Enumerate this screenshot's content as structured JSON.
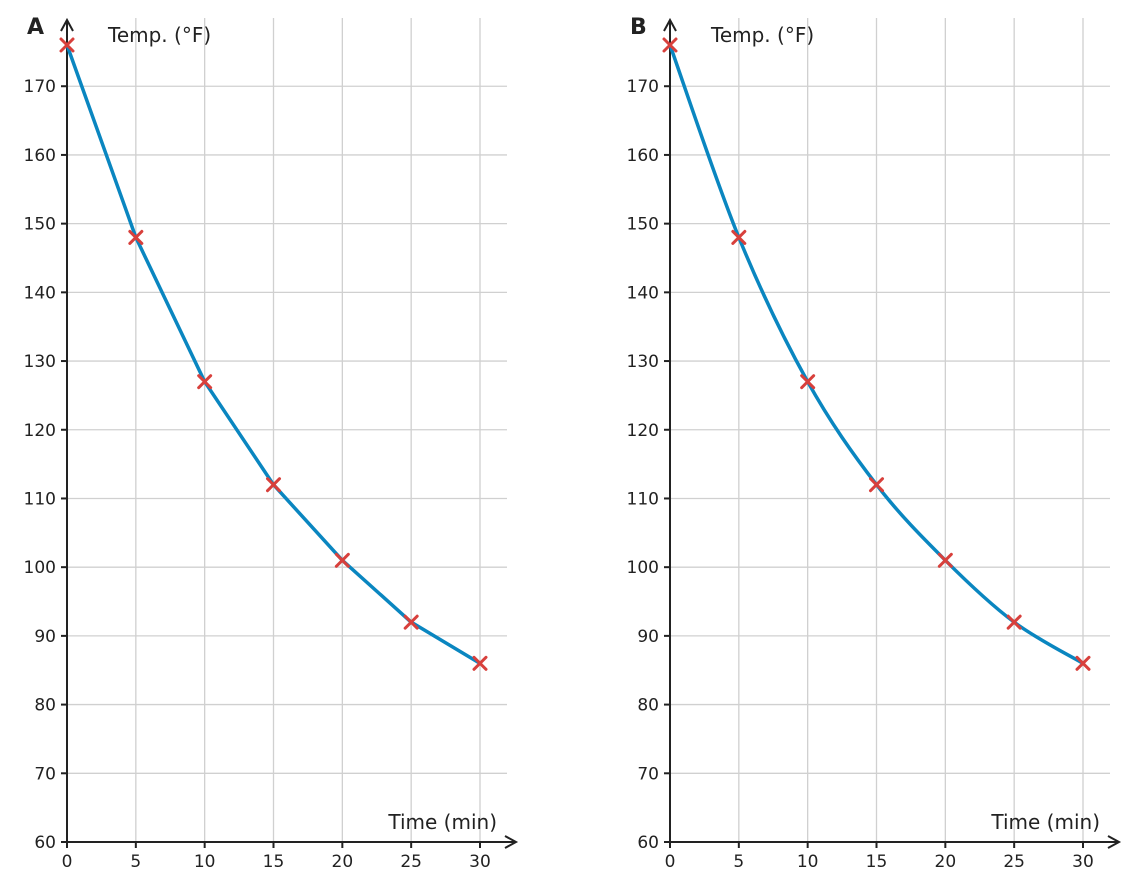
{
  "colors": {
    "curve": "#0a86c0",
    "marker": "#d8403c",
    "grid": "#d0d0d0",
    "axis": "#222222"
  },
  "chart_data": [
    {
      "type": "line",
      "panel_label": "A",
      "xlabel": "Time (min)",
      "ylabel": "Temp. (°F)",
      "xlim": [
        0,
        30
      ],
      "ylim": [
        60,
        176
      ],
      "x_ticks": [
        0,
        5,
        10,
        15,
        20,
        25,
        30
      ],
      "y_ticks": [
        60,
        70,
        80,
        90,
        100,
        110,
        120,
        130,
        140,
        150,
        160,
        170
      ],
      "grid": true,
      "x": [
        0,
        5,
        10,
        15,
        20,
        25,
        30
      ],
      "y": [
        176,
        148,
        127,
        112,
        101,
        92,
        86
      ],
      "curve_style": "straight segments through points",
      "markers": "x"
    },
    {
      "type": "line",
      "panel_label": "B",
      "xlabel": "Time (min)",
      "ylabel": "Temp. (°F)",
      "xlim": [
        0,
        30
      ],
      "ylim": [
        60,
        176
      ],
      "x_ticks": [
        0,
        5,
        10,
        15,
        20,
        25,
        30
      ],
      "y_ticks": [
        60,
        70,
        80,
        90,
        100,
        110,
        120,
        130,
        140,
        150,
        160,
        170
      ],
      "grid": true,
      "x": [
        0,
        5,
        10,
        15,
        20,
        25,
        30
      ],
      "y": [
        176,
        148,
        127,
        112,
        101,
        92,
        86
      ],
      "curve_style": "smooth curve through points",
      "markers": "x"
    }
  ]
}
